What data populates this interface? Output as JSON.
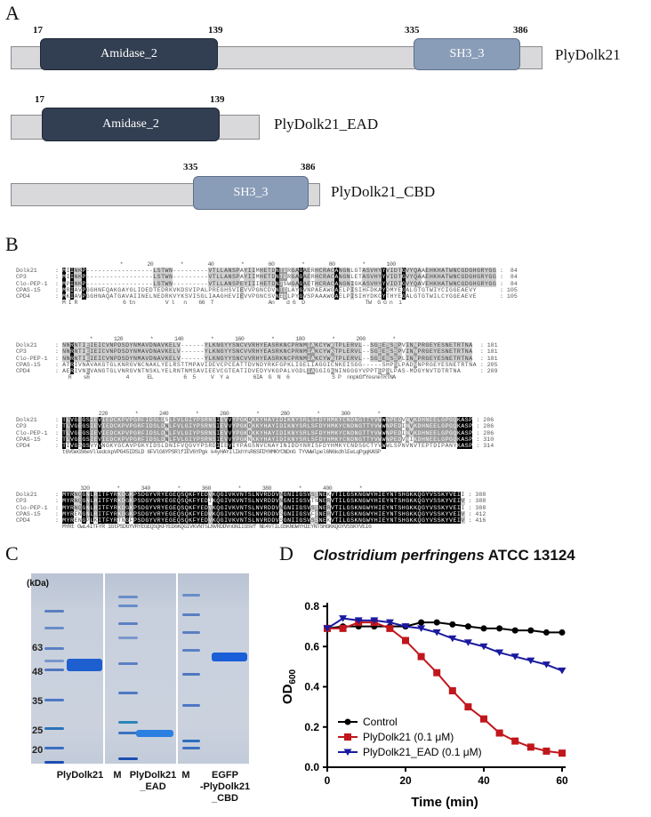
{
  "panel_a": {
    "label": "A",
    "constructs": [
      {
        "name": "PlyDolk21",
        "domains": [
          {
            "name": "Amidase_2",
            "start": "17",
            "end": "139"
          },
          {
            "name": "SH3_3",
            "start": "335",
            "end": "386"
          }
        ]
      },
      {
        "name": "PlyDolk21_EAD",
        "domains": [
          {
            "name": "Amidase_2",
            "start": "17",
            "end": "139"
          }
        ]
      },
      {
        "name": "PlyDolk21_CBD",
        "domains": [
          {
            "name": "SH3_3",
            "start": "335",
            "end": "386"
          }
        ]
      }
    ]
  },
  "panel_b": {
    "label": "B",
    "blocks": [
      {
        "ruler": "                   *        20         *        40         *        60         *        80         *       100",
        "rows": [
          {
            "name": "Dolk21",
            "seq": "MIINKP-----------------LSTWN---------VTLLANSPAYIIMHETDNTDRGAGAERHCRACANGNLGTASVHYYVIDTGVYQAAEHKHATWNCGDGHGRYGG",
            "end": "84"
          },
          {
            "name": "CP3",
            "seq": "MIINKP-----------------LSTWN---------VTLLANSPAYIIMHETDNTDRGAGAERHCRACANGNLETASVHYYVIDTGVYQAAEHKHATWNCGDGHGRYGG",
            "end": "84"
          },
          {
            "name": "Clo-PEP-1",
            "seq": "MPINKP-----------------LSTWN---------VTLLANSPEYIIIHETDNTSWGAGAETHCRACANGNIGKASVHYYVIDTGVYQAVEHKHATWNCGDGHGRYGG",
            "end": "84"
          },
          {
            "name": "CPAS-15",
            "seq": "MRIAVPGGHNFQAKGAYGLIDEDTEDRKVKDSVIPALPREGHSVIEVVPGNCDVNTDLAYGVNPAEAWGAELPISIHFDKAYDMYEGALGTGTWIYCIGGEAEVY",
            "end": "105"
          },
          {
            "name": "CPD4",
            "seq": "MKIAVPGGHNAQATGAVAIINELNEDRKVYKSVISGLIAAGHEVIEVVPGNCSVNEDLPYGVSPAAAWGAELPISIHYDKCYTHYEGALGTGTWILCYGGEAEVE",
            "end": "105"
          }
        ],
        "consensus": "M I R               6 tn          V l   n    66  T                  An    d 6  D                    TW  G G n  i"
      },
      {
        "ruler": "         *       120         *       140         *       160         *       180         *       200         *",
        "rows": [
          {
            "name": "Dolk21",
            "seq": "NNRNTIEIEICVNPDSDYNMAVDNAVKELV------YLKNGYYSNCVVRHYEASRKNCPRNMIAKCYWKTPLERVL--SGEESSSPVINNPRGEYESNETRTNA",
            "end": "181"
          },
          {
            "name": "CP3",
            "seq": "NNRNTIEIEICVNPDSDYNMAVDNAVKELV------YLKNGYYSNCVVRHYEASRKNCPRNMIAKCYWKTPLERVL--SGEESSSPVINNPRGEYESNETRTNA",
            "end": "181"
          },
          {
            "name": "Clo-PEP-1",
            "seq": "NNRNTIEIEICVNPDSDYNMAVDNAVKELV------YLKNGYYSNCVVRHYEASRKNCPRNMIAKCYWKTPLERVL--SGEESSSPLINNPRGEYESNETRTNA",
            "end": "181"
          },
          {
            "name": "CPAS-15",
            "seq": "ATRIVNAVAKGTGLKNRGVNCNAKLYELRSTTMPAVIDEVCPCEATTDVNDYRKFGPKLIGELIAGGICNKEISGG-----SHPSLPADNNPRGEYESNETRTNA",
            "end": "205"
          },
          {
            "name": "CPD4",
            "seq": "AERIVNEVANGTGLVNRGVNTNSKLYELRNTNMSAVIEEVCGTEATIDVEDYVKGPALVGDLIAGGIGKNINGGGYVPPTEPSLPAS-MDGYNVTDTRTNA",
            "end": "209"
          }
        ],
        "consensus": "  R    s6            4      EL          6  5     V  Y a        6IA  G  N  6              S P  nnpkGfYesneTRTNA"
      },
      {
        "ruler": "            220         *       240         *       260         *       280         *       300         *",
        "rows": [
          {
            "name": "Dolk21",
            "seq": "TLVGEGSIEVIEDCKPVPGRFIDSLDSLFVLGIYPSRNSIEVVYPGKDKKYHAYIDIKNYSRLSFDYHMKYCNDNGTTYVWWNPEDVNVKDHNEELGPGQKASP",
            "end": "286"
          },
          {
            "name": "CP3",
            "seq": "TLVGEGSIEVIEDCKPVPGRFIDSLDNLFVLGIYPSRNSIEVVYPGKDKKYHAYIDIKNYSRLSFDYHMKYCNDNGTTYVWWNPEDINVKDHNEELGPGQKASP",
            "end": "286"
          },
          {
            "name": "Clo-PEP-1",
            "seq": "TLVGEGSIEVIEDCKPVPGRFIDSLDNLFVLGIYPSRNSIEVVYPGKDKKYHAYIDIKNYSRLSFDYHMKYCNDNGTTYVWWNPEDINVKDHNEELGPGQKASP",
            "end": "286"
          },
          {
            "name": "CPAS-15",
            "seq": "TLVGEGSIEVIEDCKPVPGRFIDSLDNLFVLGIYPSRNSIEVVYPGKNKKYHAYIDIKNYSRLSFDYHMKYCNDNGTTYVWWNPEDVNIKDHNEELGPGQKASP",
            "end": "310"
          },
          {
            "name": "CPD4",
            "seq": "TIVGSGSVYVNGKYGCAVPGKYIDSLDNIFVQGVYPSRDIIEVIYPAGSNVCNAYINIDDYNRISFDYHMKYCNDSGCTYVWWLSPNVNVTEPTDIPANYKASP",
            "end": "314"
          }
        ],
        "consensus": "t6VGeGS6eVlledckpVPG45IDSLD 6FVlG6YPSRlfIEV6YPgk k4yHAYIlIkhYsR6SFDYHMKYCNDnG TYVWWlpel6N6kdhlEeLqPgqKASP"
      },
      {
        "ruler": "      320         *       340         *       360         *       380         *       400         *",
        "rows": [
          {
            "name": "Dolk21",
            "seq": "MYRNQGNLRITFYRKDGKPSDGYVRYEGEQSQKFYEDVKQGIVKVNTSLNVRDDVNGNIIGSVSSNEKVTILGSKNGWYHIEYNTSHGKKQGYVSSKYVEII",
            "end": "388"
          },
          {
            "name": "CP3",
            "seq": "MYRNQGNLRITFYRKDGKPSDGYVRYEGEQSQKFYEDIKQGIVKVNTSLNVRDDVNGNIIGSVTNNERVTILGSKNGWYHIEYNTSHGKKQGYVSSKYVEIV",
            "end": "388"
          },
          {
            "name": "Clo-PEP-1",
            "seq": "MYRNQGNLRITFYRKDGKPSDGYVRYEGEQSQKFYEDVKQGIVKVNTSLNVRDDVNGNIIGSVSSNERVTILGSKNGWYHIEYNTSHGKKQGYVSSKYVEII",
            "end": "388"
          },
          {
            "name": "CPAS-15",
            "seq": "MYRENGNLRITFYRKDGKPSDGYVRYEGEQSQKFYEDVKQGIVKVNTSLNVRDDVSGNIIGSVFSNERVTILGSKNGWYHIEYNTSHGKKQGYVSSKYVEIV",
            "end": "412"
          },
          {
            "name": "CPD4",
            "seq": "MYRENGPLKITFYRTNGFPSDGYVRYEGEQSQKFYEDVKQGIVKVNTSLNVRDDVSGNIIGSVSSNEKVTILGSKNGWYHIEYNTSHGKKQGYVSSKYVEIV",
            "end": "416"
          }
        ],
        "consensus": "MYRt GwL4ITFYR 1GtPSDGYVRYEGEQSQKFYED6KQGIVKVNTSLNVRDDVnGNIIGSVf NE4VTILGSKNGWYHIEYNTSHGKKQGYVSSKYVEI6"
      }
    ]
  },
  "panel_c": {
    "label": "C",
    "unit": "(kDa)",
    "markers": [
      "63",
      "48",
      "35",
      "25",
      "20"
    ],
    "lanes": [
      "PlyDolk21",
      "M",
      "PlyDolk21\n_EAD",
      "M",
      "EGFP\n-PlyDolk21\n_CBD"
    ]
  },
  "panel_d": {
    "label": "D",
    "chart_data": {
      "type": "line",
      "title_italic": "Clostridium perfringens",
      "title_rest": " ATCC 13124",
      "xlabel": "Time (min)",
      "ylabel": "OD",
      "ylabel_sub": "600",
      "xlim": [
        0,
        60
      ],
      "ylim": [
        0,
        0.8
      ],
      "xticks": [
        "0",
        "20",
        "40",
        "60"
      ],
      "yticks": [
        "0.0",
        "0.2",
        "0.4",
        "0.6",
        "0.8"
      ],
      "legend_position": "bottom-left",
      "x": [
        0,
        4,
        8,
        12,
        16,
        20,
        24,
        28,
        32,
        36,
        40,
        44,
        48,
        52,
        56,
        60
      ],
      "series": [
        {
          "name": "Control",
          "color": "#000000",
          "marker": "circle",
          "values": [
            0.69,
            0.7,
            0.7,
            0.7,
            0.7,
            0.7,
            0.72,
            0.72,
            0.71,
            0.7,
            0.69,
            0.69,
            0.68,
            0.68,
            0.67,
            0.67
          ]
        },
        {
          "name": "PlyDolk21 (0.1 μM)",
          "color": "#c0161c",
          "marker": "square",
          "values": [
            0.69,
            0.69,
            0.72,
            0.72,
            0.69,
            0.63,
            0.55,
            0.47,
            0.38,
            0.3,
            0.24,
            0.17,
            0.13,
            0.1,
            0.08,
            0.07
          ]
        },
        {
          "name": "PlyDolk21_EAD (0.1 μM)",
          "color": "#1a1aa0",
          "marker": "triangle-down",
          "values": [
            0.69,
            0.74,
            0.73,
            0.73,
            0.72,
            0.7,
            0.69,
            0.67,
            0.64,
            0.62,
            0.6,
            0.57,
            0.55,
            0.53,
            0.51,
            0.48
          ]
        }
      ]
    }
  }
}
